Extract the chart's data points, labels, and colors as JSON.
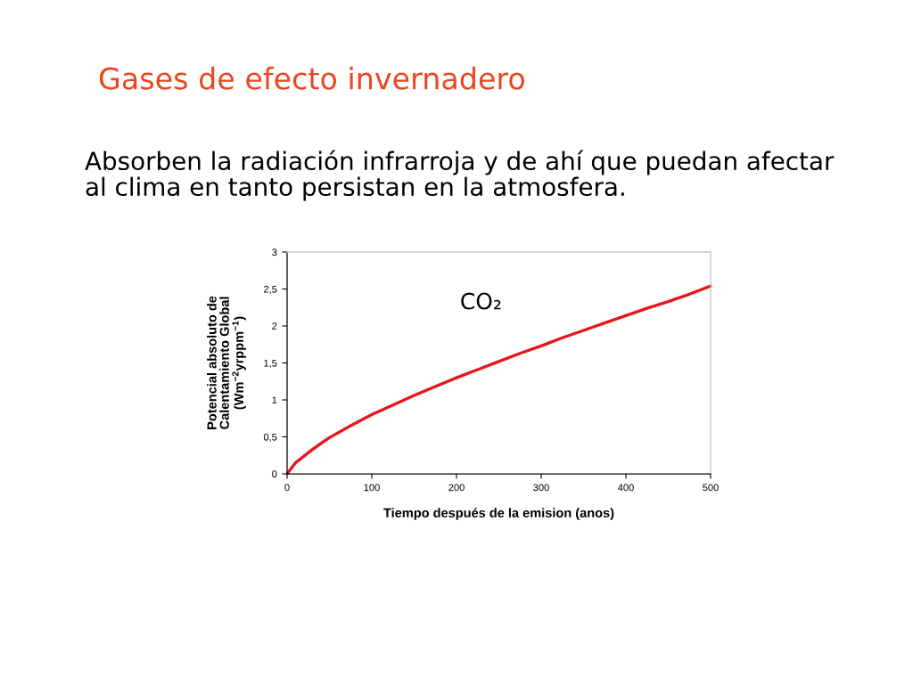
{
  "chart_data": {
    "type": "line",
    "title": "Gases de efecto invernadero",
    "subtitle": "Absorben la radiación infrarroja y de ahí que puedan afectar\nal clima en tanto persistan en la atmosfera.",
    "xlabel": "Tiempo después de la emision (anos)",
    "ylabel": "Potencial absoluto de\nCalentamiento Global\n(Wm$^{−2}$yrppm$^{−1}$)",
    "x": [
      0,
      10,
      20,
      30,
      40,
      50,
      75,
      100,
      125,
      150,
      175,
      200,
      225,
      250,
      275,
      300,
      325,
      350,
      375,
      400,
      425,
      450,
      475,
      500
    ],
    "series": [
      {
        "name": "CO₂",
        "color": "#e8141b",
        "values": [
          0,
          0.15,
          0.24,
          0.33,
          0.41,
          0.49,
          0.65,
          0.8,
          0.93,
          1.06,
          1.18,
          1.3,
          1.41,
          1.52,
          1.63,
          1.73,
          1.84,
          1.94,
          2.04,
          2.14,
          2.24,
          2.33,
          2.43,
          2.54
        ]
      }
    ],
    "xlim": [
      0,
      500
    ],
    "xticks": [
      0,
      100,
      200,
      300,
      400,
      500
    ],
    "ylim": [
      0,
      3
    ],
    "yticks": [
      0,
      {
        "value": 0.5,
        "label": "0,5"
      },
      1,
      {
        "value": 1.5,
        "label": "1,5"
      },
      2,
      {
        "value": 2.5,
        "label": "2,5"
      },
      3
    ]
  }
}
